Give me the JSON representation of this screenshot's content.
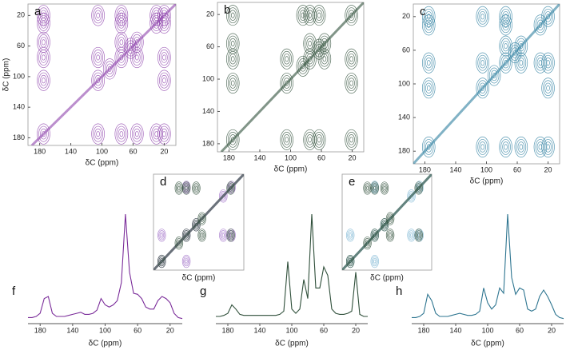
{
  "chart_data": [
    {
      "type": "contour",
      "label": "a",
      "xlabel": "δC (ppm)",
      "ylabel": "δC (ppm)",
      "xlim": [
        195,
        5
      ],
      "ylim": [
        5,
        190
      ],
      "xticks": [
        180,
        140,
        100,
        60,
        20
      ],
      "yticks": [
        20,
        60,
        100,
        140,
        180
      ],
      "series": [
        {
          "color": "#8e44ad",
          "x": [
            175,
            105,
            90,
            75,
            63,
            55,
            30,
            20,
            175,
            175,
            175,
            175,
            175,
            20,
            30,
            55,
            75,
            105,
            75,
            75,
            20,
            55,
            105,
            20,
            105,
            20,
            30,
            75
          ],
          "y": [
            175,
            105,
            90,
            75,
            63,
            55,
            30,
            20,
            20,
            30,
            55,
            75,
            105,
            175,
            175,
            175,
            175,
            175,
            20,
            55,
            75,
            75,
            75,
            105,
            20,
            30,
            20,
            30
          ]
        }
      ]
    },
    {
      "type": "contour",
      "label": "b",
      "xlabel": "δC (ppm)",
      "xlim": [
        195,
        5
      ],
      "ylim": [
        5,
        190
      ],
      "xticks": [
        180,
        140,
        100,
        60,
        20
      ],
      "yticks": [
        20,
        60,
        100,
        140,
        180
      ],
      "series": [
        {
          "color": "#2f4f3a",
          "x": [
            175,
            105,
            84,
            75,
            63,
            56,
            21,
            175,
            175,
            175,
            175,
            21,
            63,
            75,
            105,
            75,
            75,
            21,
            56,
            105,
            21,
            63,
            84
          ],
          "y": [
            175,
            105,
            84,
            75,
            63,
            56,
            21,
            21,
            56,
            75,
            105,
            175,
            175,
            175,
            175,
            21,
            56,
            75,
            75,
            75,
            105,
            21,
            21
          ]
        }
      ]
    },
    {
      "type": "contour",
      "label": "c",
      "xlabel": "δC (ppm)",
      "xlim": [
        195,
        5
      ],
      "ylim": [
        5,
        195
      ],
      "xticks": [
        180,
        140,
        100,
        60,
        20
      ],
      "yticks": [
        20,
        60,
        100,
        140,
        180
      ],
      "series": [
        {
          "color": "#2e7fa0",
          "x": [
            175,
            105,
            90,
            75,
            63,
            55,
            30,
            20,
            175,
            175,
            175,
            175,
            20,
            30,
            55,
            75,
            105,
            75,
            75,
            20,
            55,
            105,
            20,
            105,
            30,
            75
          ],
          "y": [
            175,
            105,
            90,
            75,
            63,
            55,
            30,
            20,
            20,
            30,
            75,
            105,
            175,
            175,
            175,
            175,
            175,
            20,
            55,
            75,
            75,
            75,
            105,
            20,
            75,
            30
          ]
        }
      ]
    },
    {
      "type": "contour",
      "label": "d",
      "xlabel": "δC (ppm)",
      "xlim": [
        115,
        5
      ],
      "ylim": [
        5,
        115
      ],
      "series": [
        {
          "color": "#a070c8",
          "x": [
            105,
            75,
            63,
            30,
            20,
            75,
            20,
            105,
            75,
            30
          ],
          "y": [
            105,
            75,
            63,
            30,
            20,
            20,
            75,
            75,
            105,
            75
          ]
        },
        {
          "color": "#2f4f3a",
          "x": [
            105,
            84,
            75,
            63,
            56,
            21,
            75,
            21,
            63,
            84,
            56
          ],
          "y": [
            105,
            84,
            75,
            63,
            56,
            21,
            21,
            75,
            21,
            21,
            75
          ]
        }
      ]
    },
    {
      "type": "contour",
      "label": "e",
      "xlabel": "δC (ppm)",
      "xlim": [
        115,
        5
      ],
      "ylim": [
        5,
        115
      ],
      "series": [
        {
          "color": "#7fb8d4",
          "x": [
            105,
            75,
            63,
            30,
            20,
            75,
            20,
            105,
            75,
            30
          ],
          "y": [
            105,
            75,
            63,
            30,
            20,
            20,
            75,
            75,
            105,
            75
          ]
        },
        {
          "color": "#2f4f3a",
          "x": [
            105,
            84,
            75,
            63,
            56,
            21,
            75,
            21,
            63,
            84,
            56
          ],
          "y": [
            105,
            84,
            75,
            63,
            56,
            21,
            21,
            75,
            21,
            21,
            75
          ]
        }
      ]
    },
    {
      "type": "line",
      "label": "f",
      "xlabel": "δC (ppm)",
      "xlim": [
        195,
        5
      ],
      "ylim": [
        0,
        100
      ],
      "xticks": [
        180,
        140,
        100,
        60,
        20
      ],
      "x": [
        195,
        190,
        185,
        180,
        175,
        170,
        165,
        160,
        155,
        150,
        145,
        140,
        135,
        130,
        125,
        120,
        115,
        110,
        105,
        100,
        95,
        90,
        85,
        80,
        75,
        70,
        65,
        60,
        55,
        50,
        45,
        40,
        35,
        30,
        25,
        20,
        15,
        10,
        5
      ],
      "series": [
        {
          "color": "#7b2d9a",
          "values": [
            2,
            2,
            3,
            6,
            20,
            22,
            6,
            3,
            3,
            3,
            4,
            5,
            6,
            7,
            5,
            5,
            6,
            9,
            20,
            14,
            12,
            14,
            18,
            35,
            100,
            45,
            25,
            24,
            20,
            12,
            10,
            10,
            18,
            22,
            20,
            16,
            6,
            2,
            1
          ]
        }
      ]
    },
    {
      "type": "line",
      "label": "g",
      "xlabel": "δC (ppm)",
      "xlim": [
        195,
        5
      ],
      "ylim": [
        0,
        100
      ],
      "xticks": [
        180,
        140,
        100,
        60,
        20
      ],
      "x": [
        195,
        190,
        185,
        180,
        175,
        170,
        165,
        160,
        155,
        150,
        145,
        140,
        135,
        130,
        125,
        120,
        115,
        110,
        105,
        100,
        95,
        90,
        85,
        80,
        75,
        70,
        65,
        60,
        55,
        50,
        45,
        40,
        35,
        30,
        25,
        20,
        15,
        10,
        5
      ],
      "series": [
        {
          "color": "#2f4f3a",
          "values": [
            3,
            3,
            4,
            6,
            14,
            10,
            5,
            4,
            4,
            4,
            4,
            4,
            4,
            4,
            4,
            4,
            5,
            8,
            55,
            10,
            6,
            10,
            38,
            20,
            100,
            30,
            30,
            50,
            42,
            10,
            6,
            5,
            5,
            6,
            8,
            45,
            5,
            3,
            3
          ]
        }
      ]
    },
    {
      "type": "line",
      "label": "h",
      "xlabel": "δC (ppm)",
      "xlim": [
        195,
        5
      ],
      "ylim": [
        0,
        100
      ],
      "xticks": [
        180,
        140,
        100,
        60,
        20
      ],
      "x": [
        195,
        190,
        185,
        180,
        175,
        170,
        165,
        160,
        155,
        150,
        145,
        140,
        135,
        130,
        125,
        120,
        115,
        110,
        105,
        100,
        95,
        90,
        85,
        80,
        75,
        70,
        65,
        60,
        55,
        50,
        45,
        40,
        35,
        30,
        25,
        20,
        15,
        10,
        5
      ],
      "series": [
        {
          "color": "#2e7590",
          "values": [
            2,
            2,
            3,
            6,
            24,
            18,
            6,
            3,
            3,
            3,
            4,
            5,
            6,
            5,
            4,
            4,
            5,
            8,
            30,
            16,
            10,
            14,
            30,
            25,
            100,
            40,
            24,
            30,
            28,
            10,
            8,
            10,
            22,
            28,
            22,
            14,
            5,
            2,
            1
          ]
        }
      ]
    }
  ]
}
